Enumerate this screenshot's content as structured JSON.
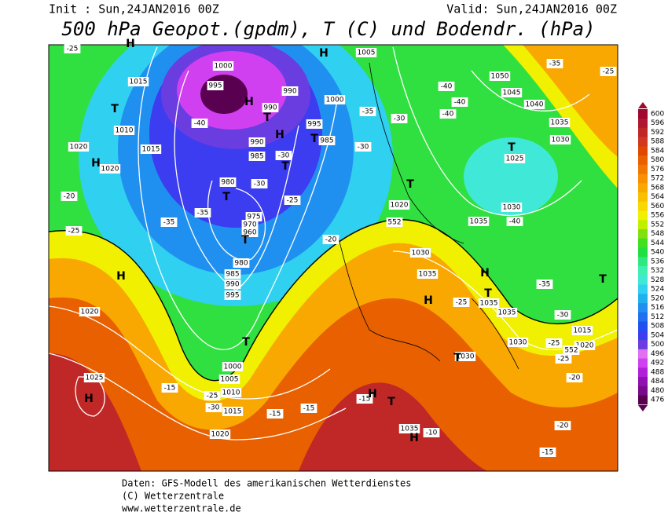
{
  "header": {
    "init": "Init : Sun,24JAN2016 00Z",
    "valid": "Valid: Sun,24JAN2016 00Z",
    "title": "500 hPa Geopot.(gpdm), T (C) und Bodendr. (hPa)"
  },
  "colorbar": {
    "values": [
      476,
      480,
      484,
      488,
      492,
      496,
      500,
      504,
      508,
      512,
      516,
      520,
      524,
      528,
      532,
      536,
      540,
      544,
      548,
      552,
      556,
      560,
      564,
      568,
      572,
      576,
      580,
      584,
      588,
      592,
      596,
      600
    ],
    "colors": [
      "#5a0050",
      "#7a0a8c",
      "#9010b0",
      "#b020d8",
      "#d040f0",
      "#e070f0",
      "#6a3de0",
      "#3c3cf0",
      "#2050f0",
      "#2070f0",
      "#2090f0",
      "#20b0f0",
      "#30d0f0",
      "#40e8d8",
      "#40f0b0",
      "#30e880",
      "#20e040",
      "#40e020",
      "#80e010",
      "#c0f000",
      "#f0f000",
      "#f8d800",
      "#f8c000",
      "#f8a800",
      "#f89000",
      "#f07800",
      "#e86000",
      "#e04800",
      "#d03820",
      "#c02828",
      "#b01830",
      "#a00830"
    ]
  },
  "map": {
    "isobar_labels": [
      "1000",
      "995",
      "990",
      "990",
      "1015",
      "1010",
      "1015",
      "1020",
      "1020",
      "990",
      "985",
      "985",
      "995",
      "1000",
      "1005",
      "980",
      "975",
      "970",
      "960",
      "980",
      "985",
      "990",
      "995",
      "1000",
      "1005",
      "1010",
      "1015",
      "1020",
      "1020",
      "1025",
      "1020",
      "1030",
      "1035",
      "1035",
      "1030",
      "1025",
      "1030",
      "1035",
      "1040",
      "1045",
      "1050",
      "1035",
      "1035",
      "1030",
      "1020",
      "1015",
      "1030",
      "1035"
    ],
    "temperature_labels": [
      "-25",
      "-40",
      "-30",
      "-35",
      "-35",
      "-30",
      "-25",
      "-20",
      "-30",
      "-35",
      "-30",
      "-40",
      "-40",
      "-40",
      "-35",
      "-25",
      "-25",
      "-20",
      "-40",
      "-35",
      "-30",
      "-25",
      "-25",
      "-25",
      "-20",
      "-20",
      "-15",
      "-15",
      "-25",
      "-30",
      "-15",
      "-15",
      "-15",
      "-10",
      "552",
      "552"
    ],
    "centers": [
      "H",
      "H",
      "T",
      "H",
      "T",
      "H",
      "T",
      "T",
      "T",
      "T",
      "T",
      "T",
      "H",
      "T",
      "H",
      "H",
      "T",
      "H",
      "H",
      "H",
      "T",
      "T",
      "H",
      "T"
    ]
  },
  "footer": [
    "Daten: GFS-Modell des amerikanischen Wetterdienstes",
    "(C) Wetterzentrale",
    "www.wetterzentrale.de"
  ]
}
